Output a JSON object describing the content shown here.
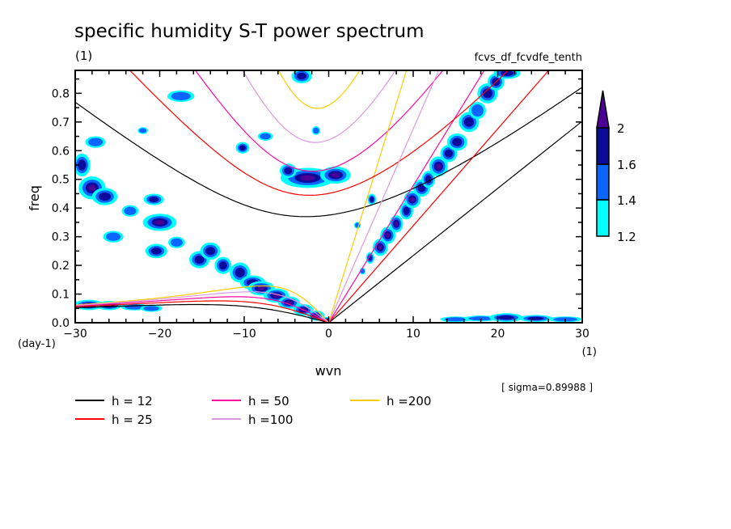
{
  "chart_data": {
    "type": "contour",
    "title": "specific humidity S-T power spectrum",
    "subtitle_left": "(1)",
    "subtitle_right": "fcvs_df_fcvdfe_tenth",
    "xlabel": "wvn",
    "ylabel": "freq",
    "x_unit": "(1)",
    "y_unit": "(day-1)",
    "xlim": [
      -30,
      30
    ],
    "ylim": [
      0,
      0.88
    ],
    "x_ticks": [
      -30,
      -20,
      -10,
      0,
      10,
      20,
      30
    ],
    "x_tick_labels": [
      "-30",
      "-20",
      "-10",
      "0",
      "10",
      "20",
      "30"
    ],
    "y_ticks": [
      0,
      0.1,
      0.2,
      0.3,
      0.4,
      0.5,
      0.6,
      0.7,
      0.8
    ],
    "y_tick_labels": [
      "0.0",
      "0.1",
      "0.2",
      "0.3",
      "0.4",
      "0.5",
      "0.6",
      "0.7",
      "0.8"
    ],
    "grid": false,
    "annotation": "[ sigma=0.89988 ]",
    "colorbar": {
      "levels": [
        1.2,
        1.4,
        1.6,
        2
      ],
      "labels": [
        "1.2",
        "1.4",
        "1.6",
        "2"
      ],
      "colors": [
        "#00ffff",
        "#0a64ff",
        "#0a0a9b",
        "#4b0096"
      ],
      "extend": "max",
      "placement": "right"
    },
    "dispersion_curves": {
      "wave_types": [
        "kelvin",
        "inertio-gravity n=1",
        "rossby n=1"
      ],
      "legend": [
        {
          "label": "h = 12",
          "h": 12,
          "color": "#000000"
        },
        {
          "label": "h = 50",
          "h": 50,
          "color": "#ff0aa0"
        },
        {
          "label": "h =200",
          "h": 200,
          "color": "#ffcc00"
        },
        {
          "label": "h = 25",
          "h": 25,
          "color": "#ff0000"
        },
        {
          "label": "h =100",
          "h": 100,
          "color": "#dd99dd"
        }
      ]
    },
    "shaded_regions": [
      [
        -2.5,
        0.505,
        3.2,
        0.035,
        2
      ],
      [
        0.8,
        0.515,
        1.8,
        0.03,
        2
      ],
      [
        -4.8,
        0.53,
        1.0,
        0.025,
        1.6
      ],
      [
        6.1,
        0.263,
        0.9,
        0.03,
        2
      ],
      [
        7.0,
        0.305,
        0.9,
        0.03,
        2
      ],
      [
        8.0,
        0.345,
        0.8,
        0.03,
        2
      ],
      [
        4.9,
        0.226,
        0.5,
        0.02,
        1.6
      ],
      [
        4.0,
        0.18,
        0.35,
        0.012,
        1.4
      ],
      [
        9.2,
        0.39,
        0.8,
        0.03,
        1.6
      ],
      [
        9.9,
        0.43,
        1.0,
        0.03,
        2
      ],
      [
        11.0,
        0.47,
        1.0,
        0.03,
        1.6
      ],
      [
        11.8,
        0.5,
        0.8,
        0.03,
        1.6
      ],
      [
        13.0,
        0.545,
        1.1,
        0.035,
        2
      ],
      [
        14.2,
        0.59,
        1.0,
        0.03,
        1.6
      ],
      [
        15.2,
        0.63,
        1.2,
        0.03,
        1.6
      ],
      [
        16.6,
        0.7,
        1.2,
        0.035,
        1.6
      ],
      [
        17.6,
        0.74,
        1.0,
        0.03,
        1.4
      ],
      [
        18.8,
        0.8,
        1.2,
        0.035,
        1.6
      ],
      [
        19.8,
        0.84,
        1.0,
        0.03,
        1.6
      ],
      [
        21.1,
        0.87,
        1.6,
        0.02,
        1.6
      ],
      [
        5.1,
        0.43,
        0.5,
        0.02,
        1.6
      ],
      [
        3.4,
        0.34,
        0.4,
        0.012,
        1.4
      ],
      [
        -28.0,
        0.47,
        1.6,
        0.04,
        2
      ],
      [
        -29.2,
        0.55,
        1.0,
        0.04,
        1.6
      ],
      [
        -27.6,
        0.63,
        1.2,
        0.02,
        1.4
      ],
      [
        -26.5,
        0.44,
        1.5,
        0.03,
        1.6
      ],
      [
        -20.0,
        0.35,
        2.0,
        0.03,
        2
      ],
      [
        -20.7,
        0.43,
        1.2,
        0.02,
        1.6
      ],
      [
        -20.4,
        0.25,
        1.3,
        0.025,
        1.6
      ],
      [
        -23.5,
        0.39,
        1.0,
        0.02,
        1.4
      ],
      [
        -25.5,
        0.3,
        1.2,
        0.02,
        1.4
      ],
      [
        -18.0,
        0.28,
        1.0,
        0.02,
        1.4
      ],
      [
        -15.3,
        0.22,
        1.2,
        0.03,
        1.6
      ],
      [
        -14.0,
        0.25,
        1.2,
        0.03,
        1.6
      ],
      [
        -12.5,
        0.2,
        1.0,
        0.03,
        1.6
      ],
      [
        -10.5,
        0.175,
        1.2,
        0.035,
        1.6
      ],
      [
        -9.0,
        0.14,
        1.5,
        0.025,
        1.6
      ],
      [
        -8.0,
        0.12,
        1.6,
        0.025,
        2
      ],
      [
        -6.2,
        0.095,
        1.5,
        0.025,
        2
      ],
      [
        -4.7,
        0.07,
        1.3,
        0.022,
        2
      ],
      [
        -3.0,
        0.045,
        1.2,
        0.02,
        2
      ],
      [
        -1.5,
        0.025,
        1.0,
        0.018,
        2
      ],
      [
        -0.3,
        0.01,
        0.6,
        0.01,
        2
      ],
      [
        -10.2,
        0.61,
        0.8,
        0.02,
        1.6
      ],
      [
        -17.5,
        0.79,
        1.6,
        0.02,
        1.4
      ],
      [
        -3.2,
        0.86,
        1.2,
        0.025,
        1.6
      ],
      [
        -22.0,
        0.67,
        0.6,
        0.012,
        1.4
      ],
      [
        -7.5,
        0.65,
        0.9,
        0.015,
        1.4
      ],
      [
        -1.5,
        0.67,
        0.5,
        0.015,
        1.4
      ],
      [
        -28.4,
        0.062,
        1.8,
        0.018,
        1.6
      ],
      [
        -26.0,
        0.06,
        1.5,
        0.016,
        1.6
      ],
      [
        -23.0,
        0.055,
        1.6,
        0.012,
        1.4
      ],
      [
        -21.0,
        0.05,
        1.3,
        0.012,
        1.4
      ],
      [
        15.0,
        0.012,
        1.8,
        0.01,
        1.4
      ],
      [
        18.0,
        0.015,
        2.0,
        0.01,
        1.4
      ],
      [
        21.0,
        0.018,
        2.0,
        0.015,
        1.6
      ],
      [
        24.5,
        0.015,
        2.0,
        0.012,
        1.6
      ],
      [
        28.0,
        0.012,
        2.0,
        0.01,
        1.4
      ]
    ]
  }
}
